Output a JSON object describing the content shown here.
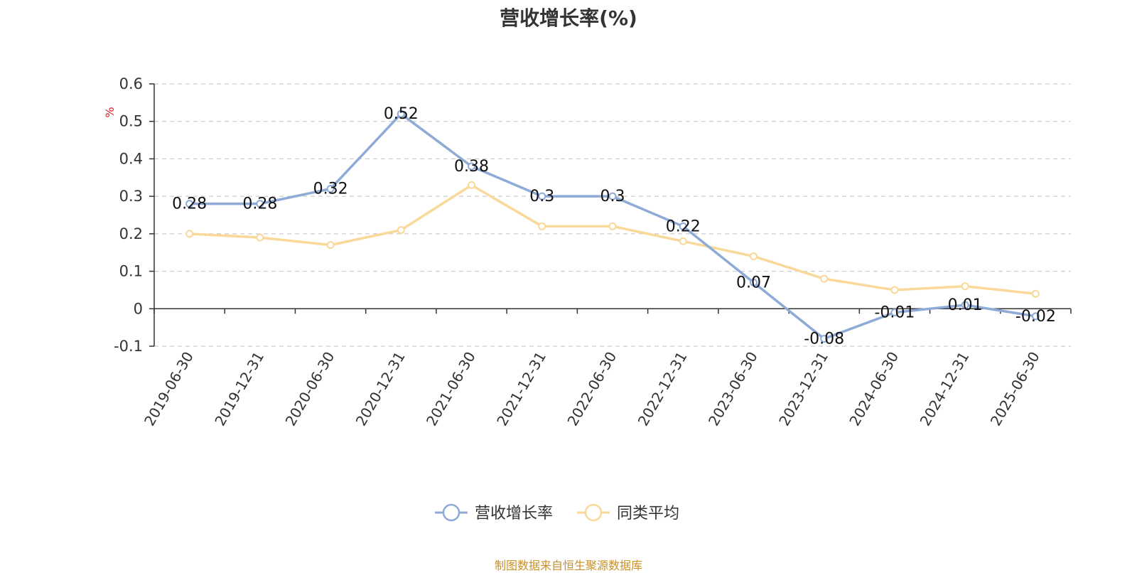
{
  "chart_data": {
    "type": "line",
    "title": "营收增长率(%)",
    "ylabel": "%",
    "xlabel": "",
    "categories": [
      "2019-06-30",
      "2019-12-31",
      "2020-06-30",
      "2020-12-31",
      "2021-06-30",
      "2021-12-31",
      "2022-06-30",
      "2022-12-31",
      "2023-06-30",
      "2023-12-31",
      "2024-06-30",
      "2024-12-31",
      "2025-06-30"
    ],
    "series": [
      {
        "name": "营收增长率",
        "color": "#8eaad6",
        "values": [
          0.28,
          0.28,
          0.32,
          0.52,
          0.38,
          0.3,
          0.3,
          0.22,
          0.07,
          -0.08,
          -0.01,
          0.01,
          -0.02
        ],
        "labels": [
          "0.28",
          "0.28",
          "0.32",
          "0.52",
          "0.38",
          "0.3",
          "0.3",
          "0.22",
          "0.07",
          "-0.08",
          "-0.01",
          "0.01",
          "-0.02"
        ]
      },
      {
        "name": "同类平均",
        "color": "#fad899",
        "values": [
          0.2,
          0.19,
          0.17,
          0.21,
          0.33,
          0.22,
          0.22,
          0.18,
          0.14,
          0.08,
          0.05,
          0.06,
          0.04
        ]
      }
    ],
    "ylim": [
      -0.1,
      0.6
    ],
    "yticks": [
      "-0.1",
      "0",
      "0.1",
      "0.2",
      "0.3",
      "0.4",
      "0.5",
      "0.6"
    ],
    "grid": true,
    "legend_position": "bottom"
  },
  "source_note": "制图数据来自恒生聚源数据库",
  "colors": {
    "ylabel": "#e02020",
    "axis": "#333333",
    "grid": "#cccccc"
  }
}
